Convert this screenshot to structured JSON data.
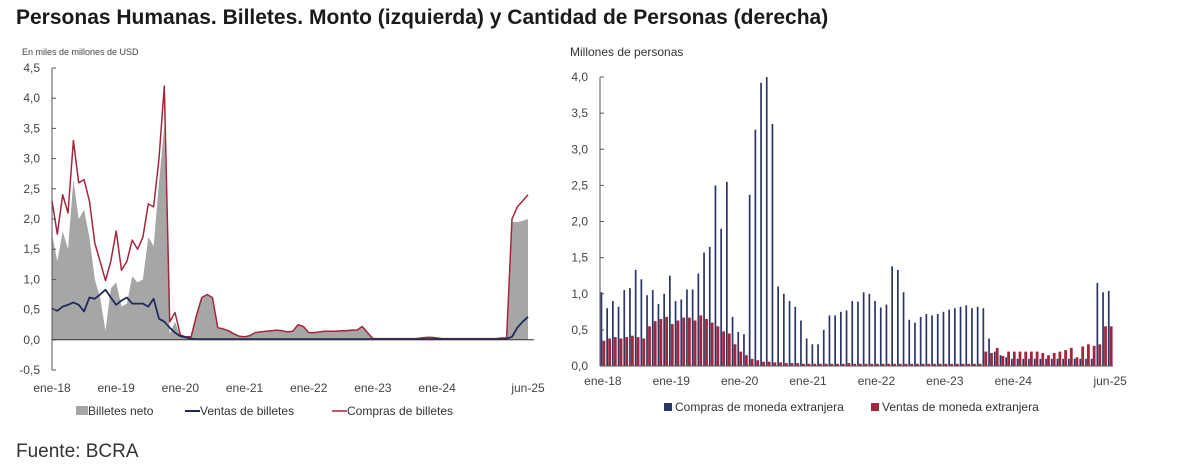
{
  "title": "Personas Humanas. Billetes. Monto (izquierda) y Cantidad de Personas (derecha)",
  "source": "Fuente: BCRA",
  "colors": {
    "neto": "#a6a6a6",
    "ventas": "#1f2a5a",
    "compras": "#a3263c",
    "compras_bar": "#2b3566",
    "ventas_bar": "#a3263c"
  },
  "chart_data": [
    {
      "type": "area",
      "unit_label": "En miles de millones de USD",
      "ylim": [
        -0.5,
        4.5
      ],
      "yticks": [
        "4,5",
        "4,0",
        "3,5",
        "3,0",
        "2,5",
        "2,0",
        "1,5",
        "1,0",
        "0,5",
        "0,0",
        "-0,5"
      ],
      "ytick_values": [
        4.5,
        4.0,
        3.5,
        3.0,
        2.5,
        2.0,
        1.5,
        1.0,
        0.5,
        0.0,
        -0.5
      ],
      "x_start": "ene-18",
      "x_end": "jun-25",
      "xticks": [
        "ene-18",
        "ene-19",
        "ene-20",
        "ene-21",
        "ene-22",
        "ene-23",
        "ene-24",
        "jun-25"
      ],
      "xtick_index": [
        0,
        12,
        24,
        36,
        48,
        60,
        72,
        89
      ],
      "legend": [
        "Billetes neto",
        "Ventas de billetes",
        "Compras de billetes"
      ],
      "series": [
        {
          "name": "Billetes neto",
          "kind": "area",
          "values": [
            1.75,
            1.3,
            1.8,
            1.5,
            2.65,
            2.0,
            2.15,
            1.7,
            1.0,
            0.7,
            0.15,
            0.85,
            0.95,
            0.55,
            0.6,
            1.05,
            0.95,
            1.0,
            1.7,
            1.55,
            2.6,
            3.55,
            0.1,
            0.3,
            0.06,
            0.04,
            0.05,
            0.4,
            0.7,
            0.75,
            0.7,
            0.2,
            0.18,
            0.15,
            0.1,
            0.06,
            0.05,
            0.07,
            0.11,
            0.12,
            0.13,
            0.14,
            0.15,
            0.14,
            0.13,
            0.13,
            0.24,
            0.22,
            0.12,
            0.12,
            0.13,
            0.14,
            0.14,
            0.14,
            0.15,
            0.15,
            0.16,
            0.16,
            0.22,
            0.12,
            0.02,
            0.02,
            0.02,
            0.02,
            0.02,
            0.02,
            0.02,
            0.02,
            0.02,
            0.03,
            0.04,
            0.04,
            0.03,
            0.02,
            0.02,
            0.02,
            0.02,
            0.02,
            0.02,
            0.02,
            0.02,
            0.02,
            0.02,
            0.02,
            0.02,
            0.02,
            1.95,
            1.95,
            1.97,
            2.0
          ]
        },
        {
          "name": "Ventas de billetes",
          "kind": "line",
          "values": [
            0.52,
            0.48,
            0.55,
            0.58,
            0.62,
            0.58,
            0.47,
            0.7,
            0.68,
            0.75,
            0.83,
            0.7,
            0.58,
            0.65,
            0.7,
            0.6,
            0.6,
            0.6,
            0.55,
            0.68,
            0.35,
            0.3,
            0.2,
            0.12,
            0.06,
            0.04,
            0.02,
            0.01,
            0.01,
            0.01,
            0.01,
            0.01,
            0.01,
            0.01,
            0.01,
            0.01,
            0.01,
            0.01,
            0.01,
            0.01,
            0.01,
            0.01,
            0.01,
            0.01,
            0.01,
            0.01,
            0.01,
            0.01,
            0.01,
            0.01,
            0.01,
            0.01,
            0.01,
            0.01,
            0.01,
            0.01,
            0.01,
            0.01,
            0.01,
            0.01,
            0.01,
            0.01,
            0.01,
            0.01,
            0.01,
            0.01,
            0.01,
            0.01,
            0.01,
            0.01,
            0.01,
            0.01,
            0.01,
            0.01,
            0.01,
            0.01,
            0.01,
            0.01,
            0.01,
            0.01,
            0.01,
            0.01,
            0.01,
            0.01,
            0.01,
            0.02,
            0.05,
            0.2,
            0.3,
            0.38
          ]
        },
        {
          "name": "Compras de billetes",
          "kind": "line",
          "values": [
            2.3,
            1.75,
            2.4,
            2.1,
            3.3,
            2.6,
            2.65,
            2.3,
            1.6,
            1.3,
            0.98,
            1.3,
            1.8,
            1.15,
            1.3,
            1.65,
            1.5,
            1.7,
            2.25,
            2.2,
            3.0,
            4.2,
            0.3,
            0.45,
            0.08,
            0.05,
            0.05,
            0.4,
            0.7,
            0.75,
            0.7,
            0.2,
            0.18,
            0.15,
            0.1,
            0.06,
            0.05,
            0.07,
            0.12,
            0.13,
            0.14,
            0.15,
            0.16,
            0.15,
            0.13,
            0.14,
            0.25,
            0.22,
            0.12,
            0.12,
            0.13,
            0.14,
            0.14,
            0.14,
            0.15,
            0.15,
            0.16,
            0.16,
            0.22,
            0.12,
            0.02,
            0.02,
            0.02,
            0.02,
            0.02,
            0.02,
            0.02,
            0.02,
            0.02,
            0.03,
            0.04,
            0.04,
            0.03,
            0.02,
            0.02,
            0.02,
            0.02,
            0.02,
            0.02,
            0.02,
            0.02,
            0.02,
            0.02,
            0.02,
            0.03,
            0.03,
            2.0,
            2.2,
            2.3,
            2.4
          ]
        }
      ]
    },
    {
      "type": "bar",
      "unit_label": "Millones de personas",
      "ylim": [
        0,
        4.0
      ],
      "yticks": [
        "4,0",
        "3,5",
        "3,0",
        "2,5",
        "2,0",
        "1,5",
        "1,0",
        "0,5",
        "0,0"
      ],
      "ytick_values": [
        4.0,
        3.5,
        3.0,
        2.5,
        2.0,
        1.5,
        1.0,
        0.5,
        0.0
      ],
      "x_start": "ene-18",
      "x_end": "jun-25",
      "xticks": [
        "ene-18",
        "ene-19",
        "ene-20",
        "ene-21",
        "ene-22",
        "ene-23",
        "ene-24",
        "jun-25"
      ],
      "xtick_index": [
        0,
        12,
        24,
        36,
        48,
        60,
        72,
        89
      ],
      "legend": [
        "Compras de moneda extranjera",
        "Ventas de moneda extranjera"
      ],
      "series": [
        {
          "name": "Compras de moneda extranjera",
          "values": [
            1.02,
            0.8,
            0.9,
            0.82,
            1.05,
            1.08,
            1.33,
            1.2,
            0.98,
            1.05,
            0.86,
            1.0,
            1.25,
            0.9,
            0.92,
            1.06,
            1.06,
            1.28,
            1.57,
            1.65,
            2.5,
            1.9,
            2.55,
            0.68,
            0.47,
            0.44,
            2.37,
            3.27,
            3.92,
            4.0,
            3.35,
            1.1,
            1.0,
            0.9,
            0.82,
            0.63,
            0.38,
            0.3,
            0.3,
            0.5,
            0.7,
            0.7,
            0.75,
            0.77,
            0.9,
            0.89,
            1.02,
            1.0,
            0.9,
            0.81,
            0.85,
            1.38,
            1.33,
            1.02,
            0.64,
            0.6,
            0.68,
            0.72,
            0.7,
            0.72,
            0.75,
            0.78,
            0.8,
            0.82,
            0.84,
            0.8,
            0.82,
            0.8,
            0.38,
            0.2,
            0.15,
            0.12,
            0.1,
            0.1,
            0.1,
            0.1,
            0.1,
            0.1,
            0.1,
            0.1,
            0.1,
            0.1,
            0.1,
            0.1,
            0.1,
            0.1,
            0.1,
            1.15,
            1.02,
            1.04
          ]
        },
        {
          "name": "Ventas de moneda extranjera",
          "values": [
            0.35,
            0.38,
            0.4,
            0.38,
            0.4,
            0.42,
            0.4,
            0.38,
            0.55,
            0.62,
            0.65,
            0.68,
            0.58,
            0.63,
            0.67,
            0.67,
            0.63,
            0.7,
            0.65,
            0.6,
            0.55,
            0.48,
            0.45,
            0.3,
            0.2,
            0.15,
            0.1,
            0.08,
            0.06,
            0.06,
            0.05,
            0.05,
            0.04,
            0.04,
            0.04,
            0.03,
            0.03,
            0.03,
            0.03,
            0.03,
            0.03,
            0.03,
            0.03,
            0.04,
            0.03,
            0.03,
            0.03,
            0.03,
            0.03,
            0.03,
            0.03,
            0.03,
            0.03,
            0.03,
            0.03,
            0.03,
            0.03,
            0.03,
            0.03,
            0.03,
            0.03,
            0.03,
            0.03,
            0.03,
            0.03,
            0.03,
            0.03,
            0.2,
            0.18,
            0.25,
            0.14,
            0.2,
            0.2,
            0.2,
            0.2,
            0.2,
            0.2,
            0.18,
            0.15,
            0.18,
            0.2,
            0.22,
            0.25,
            0.12,
            0.27,
            0.3,
            0.28,
            0.3,
            0.55,
            0.55
          ]
        }
      ]
    }
  ]
}
